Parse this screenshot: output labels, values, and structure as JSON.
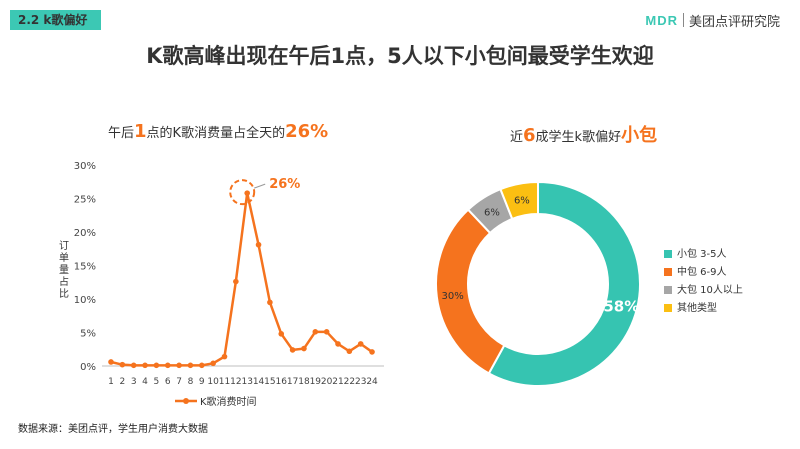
{
  "header": {
    "section_tag": "2.2  k歌偏好",
    "logo_mark": "MDR",
    "logo_text": "美团点评研究院"
  },
  "headline": "K歌高峰出现在午后1点，5人以下小包间最受学生欢迎",
  "left_subtitle": {
    "pre": "午后",
    "num": "1",
    "mid": "点的K歌消费量占全天的",
    "pct": "26%"
  },
  "right_subtitle": {
    "pre": "近",
    "num": "6",
    "mid": "成学生k歌偏好",
    "emph": "小包"
  },
  "source": "数据来源：美团点评，学生用户消费大数据",
  "colors": {
    "orange": "#f5731e",
    "teal": "#36c4b1",
    "gray": "#a6a6a6",
    "yellow": "#fbbf12"
  },
  "chart_data": [
    {
      "type": "line",
      "ylabel": "订单量占比",
      "ylim": [
        0,
        30
      ],
      "yticks": [
        "0%",
        "5%",
        "10%",
        "15%",
        "20%",
        "25%",
        "30%"
      ],
      "categories": [
        "1",
        "2",
        "3",
        "4",
        "5",
        "6",
        "7",
        "8",
        "9",
        "10",
        "11",
        "12",
        "13",
        "14",
        "15",
        "16",
        "17",
        "18",
        "19",
        "20",
        "21",
        "22",
        "23",
        "24"
      ],
      "series": [
        {
          "name": "K歌消费时间",
          "values": [
            0.6,
            0.2,
            0.1,
            0.1,
            0.1,
            0.1,
            0.1,
            0.1,
            0.1,
            0.4,
            1.4,
            12.6,
            25.8,
            18.1,
            9.5,
            4.8,
            2.4,
            2.6,
            5.1,
            5.1,
            3.3,
            2.2,
            3.3,
            2.1
          ]
        }
      ],
      "annotation": {
        "label": "26%",
        "category": "13"
      },
      "legend": "bottom",
      "grid": false
    },
    {
      "type": "pie",
      "donut": true,
      "slices": [
        {
          "label": "小包 3-5人",
          "value": 58,
          "display": "58%",
          "color": "#36c4b1"
        },
        {
          "label": "中包 6-9人",
          "value": 30,
          "display": "30%",
          "color": "#f5731e"
        },
        {
          "label": "大包 10人以上",
          "value": 6,
          "display": "6%",
          "color": "#a6a6a6"
        },
        {
          "label": "其他类型",
          "value": 6,
          "display": "6%",
          "color": "#fbbf12"
        }
      ],
      "legend": "right"
    }
  ]
}
